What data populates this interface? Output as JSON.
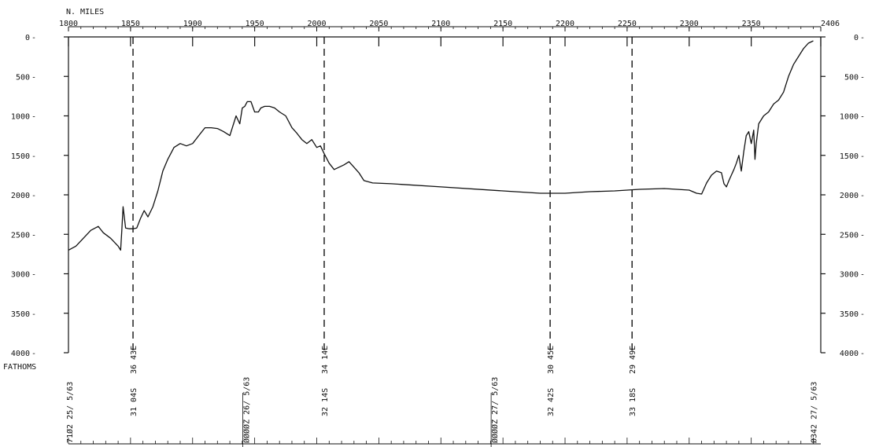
{
  "chart_data": {
    "type": "line",
    "xlabel": "N. MILES",
    "ylabel": "FATHOMS",
    "xlim": [
      1800,
      2406
    ],
    "ylim": [
      0,
      4000
    ],
    "x_ticks": [
      "1800",
      "1850",
      "1900",
      "1950",
      "2000",
      "2050",
      "2100",
      "2150",
      "2200",
      "2250",
      "2300",
      "2350",
      "2406"
    ],
    "y_ticks_left": [
      "0",
      "500",
      "1000",
      "1500",
      "2000",
      "2500",
      "3000",
      "3500",
      "4000"
    ],
    "y_ticks_right": [
      "0",
      "500",
      "1000",
      "1500",
      "2000",
      "2500",
      "3000",
      "3500",
      "4000"
    ],
    "grid": false,
    "series": [
      {
        "x": [
          1800,
          1806,
          1812,
          1818,
          1824,
          1828,
          1834,
          1840,
          1842,
          1843,
          1844,
          1846,
          1849,
          1852,
          1855,
          1858,
          1861,
          1864,
          1868,
          1872,
          1876,
          1880,
          1885,
          1890,
          1895,
          1900,
          1905,
          1910,
          1915,
          1920,
          1925,
          1930,
          1935,
          1938,
          1940,
          1942,
          1944,
          1947,
          1950,
          1953,
          1955,
          1958,
          1962,
          1966,
          1970,
          1975,
          1980,
          1984,
          1988,
          1992,
          1996,
          2000,
          2003,
          2006,
          2010,
          2014,
          2018,
          2022,
          2026,
          2030,
          2034,
          2038,
          2045,
          2060,
          2100,
          2150,
          2180,
          2200,
          2220,
          2240,
          2250,
          2260,
          2280,
          2300,
          2306,
          2310,
          2314,
          2318,
          2322,
          2326,
          2328,
          2330,
          2332,
          2334,
          2336,
          2338,
          2340,
          2342,
          2344,
          2346,
          2348,
          2350,
          2352,
          2353,
          2354,
          2356,
          2360,
          2364,
          2368,
          2372,
          2376,
          2380,
          2384,
          2388,
          2392,
          2396,
          2400
        ],
        "y": [
          2700,
          2650,
          2550,
          2450,
          2400,
          2480,
          2550,
          2650,
          2700,
          2450,
          2150,
          2420,
          2430,
          2430,
          2420,
          2300,
          2200,
          2280,
          2150,
          1950,
          1700,
          1550,
          1400,
          1350,
          1380,
          1350,
          1250,
          1150,
          1150,
          1160,
          1200,
          1250,
          1000,
          1100,
          900,
          880,
          820,
          820,
          950,
          950,
          900,
          880,
          880,
          900,
          950,
          1000,
          1150,
          1220,
          1300,
          1350,
          1300,
          1400,
          1380,
          1480,
          1600,
          1680,
          1650,
          1620,
          1580,
          1650,
          1720,
          1820,
          1850,
          1860,
          1900,
          1950,
          1980,
          1980,
          1960,
          1950,
          1940,
          1930,
          1920,
          1940,
          1980,
          1990,
          1850,
          1750,
          1700,
          1720,
          1860,
          1900,
          1820,
          1750,
          1680,
          1600,
          1500,
          1700,
          1450,
          1250,
          1200,
          1350,
          1180,
          1550,
          1350,
          1100,
          1000,
          950,
          850,
          800,
          700,
          500,
          350,
          250,
          150,
          80,
          50
        ]
      }
    ],
    "markers": [
      {
        "x": 1852,
        "top_label": "36 43E",
        "bottom_label": "31 04S"
      },
      {
        "x": 2006,
        "top_label": "34 14E",
        "bottom_label": "32 14S"
      },
      {
        "x": 2188,
        "top_label": "30 45E",
        "bottom_label": "32 42S"
      },
      {
        "x": 2254,
        "top_label": "29 49E",
        "bottom_label": "33 18S"
      }
    ],
    "date_annotations": [
      {
        "x": 1800,
        "text": "71Ø2 25/ 5/63"
      },
      {
        "x": 1943,
        "text": "ØØØØZ 26/ 5/63"
      },
      {
        "x": 2143,
        "text": "ØØØØZ 27/ 5/63"
      },
      {
        "x": 2400,
        "text": "Ø342 27/ 5/63"
      }
    ]
  }
}
